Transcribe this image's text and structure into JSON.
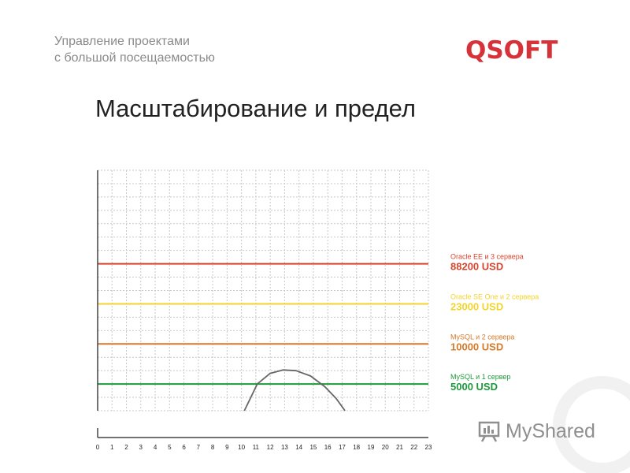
{
  "header": {
    "line1": "Управление проектами",
    "line2": "с большой посещаемостью"
  },
  "logo": {
    "text": "QSOFT",
    "color": "#d7323a"
  },
  "slide": {
    "title": "Масштабирование и предел"
  },
  "watermark": {
    "text": "MyShared"
  },
  "chart_data": {
    "type": "line",
    "title": "",
    "xlabel": "",
    "ylabel": "",
    "x_ticks": [
      "0",
      "1",
      "2",
      "3",
      "4",
      "5",
      "6",
      "7",
      "8",
      "9",
      "10",
      "11",
      "12",
      "13",
      "14",
      "15",
      "16",
      "17",
      "18",
      "19",
      "20",
      "21",
      "22",
      "23"
    ],
    "xlim": [
      0,
      23
    ],
    "ylim": [
      0,
      18
    ],
    "grid": true,
    "levels": [
      {
        "name": "Oracle EE и 3 сервера",
        "price": "88200 USD",
        "y": 11,
        "color": "#d6452e"
      },
      {
        "name": "Oracle SE One и 2 сервера",
        "price": "23000 USD",
        "y": 8,
        "color": "#f2d42a"
      },
      {
        "name": "MySQL и 2 сервера",
        "price": "10000 USD",
        "y": 5,
        "color": "#d67a2a"
      },
      {
        "name": "MySQL и 1 сервер",
        "price": "5000 USD",
        "y": 2,
        "color": "#1d9a3a"
      }
    ],
    "series": [
      {
        "color": "#666666",
        "points": [
          [
            10.2,
            0
          ],
          [
            11.1,
            2
          ],
          [
            12.0,
            2.8
          ],
          [
            12.9,
            3.05
          ],
          [
            13.8,
            3.0
          ],
          [
            14.8,
            2.6
          ],
          [
            15.8,
            1.8
          ],
          [
            16.6,
            0.9
          ],
          [
            17.2,
            0
          ]
        ]
      }
    ]
  }
}
